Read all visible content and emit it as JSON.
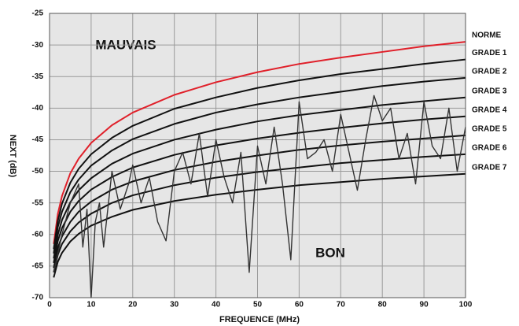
{
  "chart_data": {
    "type": "line",
    "xlabel": "FREQUENCE (MHz)",
    "ylabel": "NEXT (dB)",
    "annotations": [
      "MAUVAIS",
      "BON"
    ],
    "xlim": [
      0,
      100
    ],
    "xticks": [
      0,
      10,
      20,
      30,
      40,
      50,
      60,
      70,
      80,
      90,
      100
    ],
    "ylim": [
      -70,
      -25
    ],
    "yticks": [
      -25,
      -30,
      -35,
      -40,
      -45,
      -50,
      -55,
      -60,
      -65,
      -70
    ],
    "grid": true,
    "x": [
      1,
      2,
      3,
      5,
      7,
      10,
      15,
      20,
      30,
      40,
      50,
      60,
      70,
      80,
      90,
      100
    ],
    "series": [
      {
        "name": "NORME",
        "color": "#e0202a",
        "values": [
          -61.5,
          -56.7,
          -53.9,
          -50.3,
          -48.0,
          -45.5,
          -42.7,
          -40.7,
          -37.9,
          -35.9,
          -34.3,
          -33.0,
          -32.0,
          -31.1,
          -30.2,
          -29.5
        ]
      },
      {
        "name": "GRADE  1",
        "color": "#111111",
        "values": [
          -62.3,
          -57.8,
          -55.1,
          -51.8,
          -49.6,
          -47.3,
          -44.7,
          -42.8,
          -40.1,
          -38.3,
          -36.8,
          -35.6,
          -34.6,
          -33.8,
          -33.0,
          -32.3
        ]
      },
      {
        "name": "GRADE 2",
        "color": "#111111",
        "values": [
          -63,
          -58.8,
          -56.4,
          -53.3,
          -51.3,
          -49.1,
          -46.7,
          -44.9,
          -42.5,
          -40.7,
          -39.4,
          -38.3,
          -37.4,
          -36.5,
          -35.8,
          -35.2
        ]
      },
      {
        "name": "GRADE 3",
        "color": "#111111",
        "values": [
          -63.8,
          -60.0,
          -57.7,
          -54.9,
          -53.0,
          -51.1,
          -48.8,
          -47.2,
          -45.0,
          -43.4,
          -42.1,
          -41.1,
          -40.3,
          -39.5,
          -38.9,
          -38.3
        ]
      },
      {
        "name": "GRADE 4",
        "color": "#111111",
        "values": [
          -64.5,
          -61.0,
          -59.0,
          -56.4,
          -54.7,
          -52.9,
          -50.9,
          -49.4,
          -47.4,
          -45.9,
          -44.8,
          -43.9,
          -43.1,
          -42.4,
          -41.8,
          -41.3
        ]
      },
      {
        "name": "GRADE 5",
        "color": "#111111",
        "values": [
          -65.3,
          -62.1,
          -60.3,
          -58.0,
          -56.4,
          -54.8,
          -52.9,
          -51.6,
          -49.8,
          -48.5,
          -47.5,
          -46.6,
          -45.9,
          -45.3,
          -44.8,
          -44.3
        ]
      },
      {
        "name": "GRADE 6",
        "color": "#111111",
        "values": [
          -66,
          -63.2,
          -61.5,
          -59.5,
          -58.1,
          -56.7,
          -55.0,
          -53.8,
          -52.2,
          -51.0,
          -50.1,
          -49.4,
          -48.7,
          -48.2,
          -47.7,
          -47.3
        ]
      },
      {
        "name": "GRADE 7",
        "color": "#111111",
        "values": [
          -66.8,
          -64.3,
          -62.9,
          -61.1,
          -59.9,
          -58.6,
          -57.2,
          -56.1,
          -54.7,
          -53.7,
          -52.9,
          -52.2,
          -51.7,
          -51.2,
          -50.8,
          -50.4
        ]
      },
      {
        "color": "#333333",
        "x": [
          1,
          3,
          5,
          7,
          8,
          9,
          10,
          11,
          12,
          13,
          15,
          17,
          19,
          20,
          22,
          24,
          26,
          28,
          30,
          32,
          34,
          36,
          38,
          40,
          42,
          44,
          46,
          48,
          50,
          52,
          54,
          56,
          58,
          60,
          62,
          64,
          66,
          68,
          70,
          72,
          74,
          76,
          78,
          80,
          82,
          84,
          86,
          88,
          90,
          92,
          94,
          96,
          98,
          100
        ],
        "values": [
          -66,
          -60,
          -55,
          -52,
          -62,
          -56,
          -70,
          -58,
          -55,
          -62,
          -50,
          -56,
          -52,
          -49,
          -55,
          -51,
          -58,
          -61,
          -50,
          -47,
          -52,
          -44,
          -54,
          -45,
          -51,
          -55,
          -47,
          -66,
          -46,
          -52,
          -43,
          -52,
          -64,
          -39,
          -48,
          -47,
          -45,
          -50,
          -41,
          -47,
          -53,
          -45,
          -38,
          -42,
          -40,
          -48,
          -44,
          -52,
          -39,
          -46,
          -48,
          -40,
          -50,
          -43
        ]
      }
    ]
  }
}
